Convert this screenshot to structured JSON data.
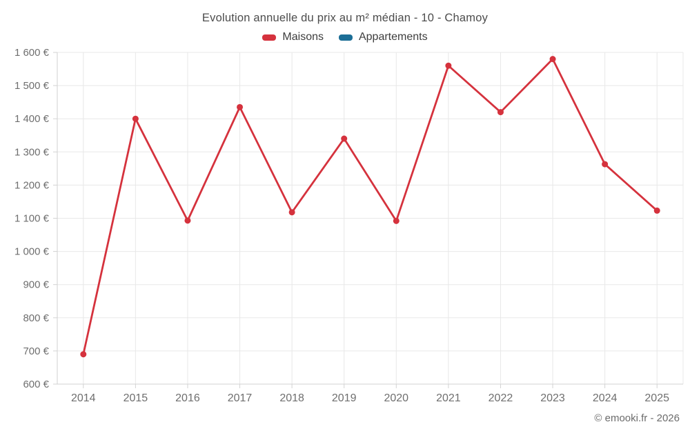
{
  "header": {
    "title": "Evolution annuelle du prix au m² médian - 10 - Chamoy"
  },
  "footer": {
    "credit": "© emooki.fr - 2026"
  },
  "colors": {
    "background": "#ffffff",
    "title_text": "#4c4c4c",
    "axis_text": "#6e6e6e",
    "grid_line": "#e8e8e8",
    "axis_line": "#d2d2d2",
    "maisons_red": "#d5323d",
    "appartements_blue": "#1c6e96"
  },
  "chart_data": {
    "type": "line",
    "title": "Evolution annuelle du prix au m² médian - 10 - Chamoy",
    "xlabel": "",
    "ylabel": "",
    "categories": [
      "2014",
      "2015",
      "2016",
      "2017",
      "2018",
      "2019",
      "2020",
      "2021",
      "2022",
      "2023",
      "2024",
      "2025"
    ],
    "series": [
      {
        "name": "Maisons",
        "color": "#d5323d",
        "values": [
          690,
          1400,
          1093,
          1435,
          1118,
          1340,
          1092,
          1560,
          1420,
          1580,
          1263,
          1123
        ]
      },
      {
        "name": "Appartements",
        "color": "#1c6e96",
        "values": []
      }
    ],
    "ylim": [
      600,
      1600
    ],
    "y_tick_step": 100,
    "y_tick_labels": [
      "600 €",
      "700 €",
      "800 €",
      "900 €",
      "1 000 €",
      "1 100 €",
      "1 200 €",
      "1 300 €",
      "1 400 €",
      "1 500 €",
      "1 600 €"
    ],
    "grid": true,
    "legend_position": "top",
    "marker_radius": 4.5,
    "line_width": 2.8
  }
}
